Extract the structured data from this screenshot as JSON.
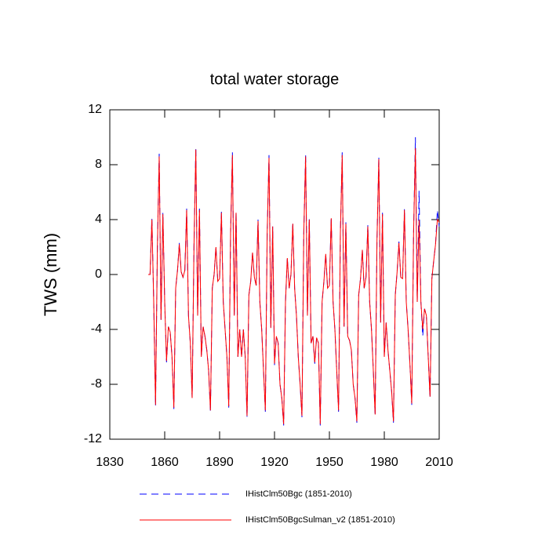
{
  "chart_data": {
    "type": "line",
    "title": "total water storage",
    "ylabel": "TWS  (mm)",
    "x": [
      1851,
      1852,
      1853,
      1854,
      1855,
      1856,
      1857,
      1858,
      1859,
      1860,
      1861,
      1862,
      1863,
      1864,
      1865,
      1866,
      1867,
      1868,
      1869,
      1870,
      1871,
      1872,
      1873,
      1874,
      1875,
      1876,
      1877,
      1878,
      1879,
      1880,
      1881,
      1882,
      1883,
      1884,
      1885,
      1886,
      1887,
      1888,
      1889,
      1890,
      1891,
      1892,
      1893,
      1894,
      1895,
      1896,
      1897,
      1898,
      1899,
      1900,
      1901,
      1902,
      1903,
      1904,
      1905,
      1906,
      1907,
      1908,
      1909,
      1910,
      1911,
      1912,
      1913,
      1914,
      1915,
      1916,
      1917,
      1918,
      1919,
      1920,
      1921,
      1922,
      1923,
      1924,
      1925,
      1926,
      1927,
      1928,
      1929,
      1930,
      1931,
      1932,
      1933,
      1934,
      1935,
      1936,
      1937,
      1938,
      1939,
      1940,
      1941,
      1942,
      1943,
      1944,
      1945,
      1946,
      1947,
      1948,
      1949,
      1950,
      1951,
      1952,
      1953,
      1954,
      1955,
      1956,
      1957,
      1958,
      1959,
      1960,
      1961,
      1962,
      1963,
      1964,
      1965,
      1966,
      1967,
      1968,
      1969,
      1970,
      1971,
      1972,
      1973,
      1974,
      1975,
      1976,
      1977,
      1978,
      1979,
      1980,
      1981,
      1982,
      1983,
      1984,
      1985,
      1986,
      1987,
      1988,
      1989,
      1990,
      1991,
      1992,
      1993,
      1994,
      1995,
      1996,
      1997,
      1998,
      1999,
      2000,
      2001,
      2002,
      2003,
      2004,
      2005,
      2006,
      2007,
      2008,
      2009,
      2010
    ],
    "series": [
      {
        "name": "IHistClm50Bgc (1851-2010)",
        "color": "#0000ff",
        "dash": true,
        "values": [
          0,
          0,
          4.1,
          -2,
          -9.6,
          2,
          8.8,
          -3.3,
          4.5,
          -2,
          -6.4,
          -3.8,
          -4.2,
          -6,
          -9.8,
          -1,
          0.3,
          2.3,
          0.2,
          -0.2,
          0.3,
          4.8,
          -3,
          -5,
          -9,
          2,
          9.3,
          -3,
          4.8,
          -6,
          -3.8,
          -4.5,
          -5.5,
          -7,
          -10,
          -1,
          0,
          2,
          -0.5,
          -0.3,
          4.6,
          -2,
          -4,
          -6,
          -9.7,
          3,
          8.9,
          -3,
          4.6,
          -6,
          -4,
          -6,
          -4,
          -6,
          -10.4,
          -1.5,
          -0.5,
          1.6,
          -0.2,
          -0.8,
          4,
          -2,
          -4,
          -7,
          -10,
          3,
          8.7,
          -3.9,
          3.5,
          -6.6,
          -4.5,
          -5,
          -8,
          -9,
          -11,
          -2,
          1.2,
          -1,
          0,
          3.8,
          -1,
          -3,
          -6,
          -8,
          -10.4,
          3,
          8.8,
          -3,
          4.1,
          -5,
          -4.5,
          -6.5,
          -4.6,
          -5,
          -11,
          -2,
          -0.5,
          1.5,
          -1,
          -0.8,
          4.2,
          -2,
          -4,
          -7,
          -10,
          3,
          8.9,
          -3.8,
          3.8,
          -4.5,
          -4.8,
          -5.5,
          -8,
          -9,
          -10.8,
          -1.5,
          -0.3,
          1.8,
          -1,
          -0.2,
          3.6,
          -2,
          -4,
          -7,
          -10.3,
          2.5,
          8.6,
          -3.5,
          4.5,
          -6,
          -3.5,
          -5.5,
          -7,
          -8.5,
          -10.8,
          -1.5,
          0.2,
          2.4,
          -0.2,
          -0.3,
          4.8,
          -2,
          -4,
          -6.5,
          -9.5,
          3,
          10,
          -2,
          6.1,
          -2,
          -4.5,
          -2.5,
          -3,
          -6,
          -9,
          -0.3,
          1,
          2.2,
          4.7,
          3.5
        ]
      },
      {
        "name": "IHistClm50BgcSulman_v2 (1851-2010)",
        "color": "#ff0000",
        "dash": false,
        "values": [
          0,
          0,
          4,
          -2,
          -9.5,
          2,
          8.6,
          -3.3,
          4.4,
          -2,
          -6.3,
          -3.8,
          -4.2,
          -6,
          -9.7,
          -1,
          0.3,
          2.2,
          0.2,
          -0.2,
          0.3,
          4.7,
          -3,
          -5,
          -9,
          2,
          9.1,
          -3,
          4.7,
          -6,
          -3.8,
          -4.5,
          -5.5,
          -7,
          -9.9,
          -1,
          0,
          2,
          -0.5,
          -0.3,
          4.5,
          -2,
          -4,
          -6,
          -9.6,
          3,
          8.7,
          -3,
          4.5,
          -6,
          -4,
          -6,
          -4,
          -6,
          -10.3,
          -1.5,
          -0.5,
          1.6,
          -0.2,
          -0.8,
          3.9,
          -2,
          -4,
          -7,
          -9.9,
          3,
          8.5,
          -3.9,
          3.5,
          -6.5,
          -4.5,
          -5,
          -8,
          -9,
          -10.9,
          -2,
          1.2,
          -1,
          0,
          3.7,
          -1,
          -3,
          -6,
          -8,
          -10.3,
          3,
          8.6,
          -3,
          4,
          -5,
          -4.5,
          -6.4,
          -4.6,
          -5,
          -10.9,
          -2,
          -0.5,
          1.5,
          -1,
          -0.8,
          4.1,
          -2,
          -4,
          -7,
          -9.9,
          3,
          8.7,
          -3.8,
          3.7,
          -4.5,
          -4.8,
          -5.5,
          -8,
          -9,
          -10.7,
          -1.5,
          -0.3,
          1.8,
          -1,
          -0.2,
          3.5,
          -2,
          -4,
          -7,
          -10.2,
          2.5,
          8.4,
          -3.5,
          4.4,
          -6,
          -3.5,
          -5.5,
          -7,
          -8.5,
          -10.7,
          -1.5,
          0.2,
          2.3,
          -0.2,
          -0.3,
          4.7,
          -2,
          -4,
          -6.5,
          -9.4,
          3,
          9.2,
          -2,
          4,
          -2,
          -4,
          -2.5,
          -3,
          -6,
          -8.9,
          -0.3,
          1,
          2.2,
          4,
          3.8
        ]
      }
    ],
    "xlim": [
      1830,
      2010
    ],
    "xticks": [
      1830,
      1860,
      1890,
      1920,
      1950,
      1980,
      2010
    ],
    "ylim": [
      -12,
      12
    ],
    "yticks": [
      -12,
      -8,
      -4,
      0,
      4,
      8,
      12
    ],
    "grid": false
  }
}
